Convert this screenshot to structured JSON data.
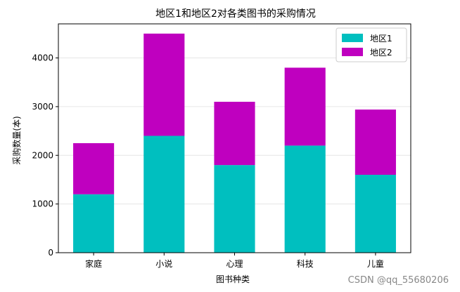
{
  "chart_data": {
    "type": "bar",
    "stacked": true,
    "title": "地区1和地区2对各类图书的采购情况",
    "xlabel": "图书种类",
    "ylabel": "采购数量(本)",
    "categories": [
      "家庭",
      "小说",
      "心理",
      "科技",
      "儿童"
    ],
    "series": [
      {
        "name": "地区1",
        "values": [
          1200,
          2400,
          1800,
          2200,
          1600
        ],
        "color": "#00bfbf"
      },
      {
        "name": "地区2",
        "values": [
          1050,
          2100,
          1300,
          1600,
          1340
        ],
        "color": "#bf00bf"
      }
    ],
    "ylim": [
      0,
      4700
    ],
    "yticks": [
      0,
      1000,
      2000,
      3000,
      4000
    ],
    "grid": "horizontal",
    "legend_position": "top-right"
  },
  "watermark": "CSDN @qq_55680206"
}
